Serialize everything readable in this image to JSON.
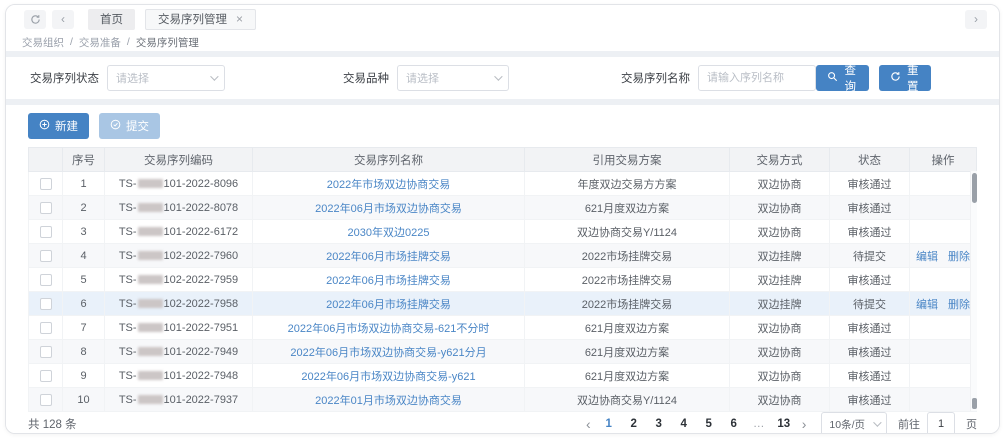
{
  "window": {
    "tabs": [
      {
        "label": "首页"
      },
      {
        "label": "交易序列管理"
      }
    ],
    "close_glyph": "×",
    "back_glyph": "‹",
    "forward_glyph": "›"
  },
  "breadcrumb": {
    "separator": "/",
    "items": [
      "交易组织",
      "交易准备",
      "交易序列管理"
    ]
  },
  "filters": {
    "status": {
      "label": "交易序列状态",
      "placeholder": "请选择"
    },
    "variety": {
      "label": "交易品种",
      "placeholder": "请选择"
    },
    "name": {
      "label": "交易序列名称",
      "placeholder": "请输入序列名称"
    },
    "search_label": "查询",
    "reset_label": "重置"
  },
  "toolbar": {
    "create_label": "新建",
    "submit_label": "提交"
  },
  "table": {
    "headers": [
      "序号",
      "交易序列编码",
      "交易序列名称",
      "引用交易方案",
      "交易方式",
      "状态",
      "操作"
    ],
    "rows": [
      {
        "num": "1",
        "code_prefix": "TS-",
        "code_suffix": "101-2022-8096",
        "name": "2022年市场双边协商交易",
        "plan": "年度双边交易方方案",
        "mode": "双边协商",
        "status": "审核通过",
        "actions": []
      },
      {
        "num": "2",
        "code_prefix": "TS-",
        "code_suffix": "101-2022-8078",
        "name": "2022年06月市场双边协商交易",
        "plan": "621月度双边方案",
        "mode": "双边协商",
        "status": "审核通过",
        "actions": []
      },
      {
        "num": "3",
        "code_prefix": "TS-",
        "code_suffix": "101-2022-6172",
        "name": "2030年双边0225",
        "plan": "双边协商交易Y/1124",
        "mode": "双边协商",
        "status": "审核通过",
        "actions": []
      },
      {
        "num": "4",
        "code_prefix": "TS-",
        "code_suffix": "102-2022-7960",
        "name": "2022年06月市场挂牌交易",
        "plan": "2022市场挂牌交易",
        "mode": "双边挂牌",
        "status": "待提交",
        "actions": [
          "编辑",
          "删除"
        ]
      },
      {
        "num": "5",
        "code_prefix": "TS-",
        "code_suffix": "102-2022-7959",
        "name": "2022年06月市场挂牌交易",
        "plan": "2022市场挂牌交易",
        "mode": "双边挂牌",
        "status": "审核通过",
        "actions": []
      },
      {
        "num": "6",
        "code_prefix": "TS-",
        "code_suffix": "102-2022-7958",
        "name": "2022年06月市场挂牌交易",
        "plan": "2022市场挂牌交易",
        "mode": "双边挂牌",
        "status": "待提交",
        "actions": [
          "编辑",
          "删除"
        ],
        "highlighted": true
      },
      {
        "num": "7",
        "code_prefix": "TS-",
        "code_suffix": "101-2022-7951",
        "name": "2022年06月市场双边协商交易-621不分时",
        "plan": "621月度双边方案",
        "mode": "双边协商",
        "status": "审核通过",
        "actions": []
      },
      {
        "num": "8",
        "code_prefix": "TS-",
        "code_suffix": "101-2022-7949",
        "name": "2022年06月市场双边协商交易-y621分月",
        "plan": "621月度双边方案",
        "mode": "双边协商",
        "status": "审核通过",
        "actions": []
      },
      {
        "num": "9",
        "code_prefix": "TS-",
        "code_suffix": "101-2022-7948",
        "name": "2022年06月市场双边协商交易-y621",
        "plan": "621月度双边方案",
        "mode": "双边协商",
        "status": "审核通过",
        "actions": []
      },
      {
        "num": "10",
        "code_prefix": "TS-",
        "code_suffix": "101-2022-7937",
        "name": "2022年01月市场双边协商交易",
        "plan": "双边协商交易Y/1124",
        "mode": "双边协商",
        "status": "审核通过",
        "actions": []
      }
    ]
  },
  "footer": {
    "total": "共 128 条",
    "pages": [
      "1",
      "2",
      "3",
      "4",
      "5",
      "6",
      "…",
      "13"
    ],
    "active_page": "1",
    "prev_glyph": "‹",
    "next_glyph": "›",
    "page_size": "10条/页",
    "goto_label": "前往",
    "goto_value": "1",
    "goto_unit": "页"
  },
  "colors": {
    "primary": "#4583c4",
    "link": "#4a86c6",
    "submit_disabled": "#a9c6e4",
    "highlight_row": "#e9f1fa"
  }
}
